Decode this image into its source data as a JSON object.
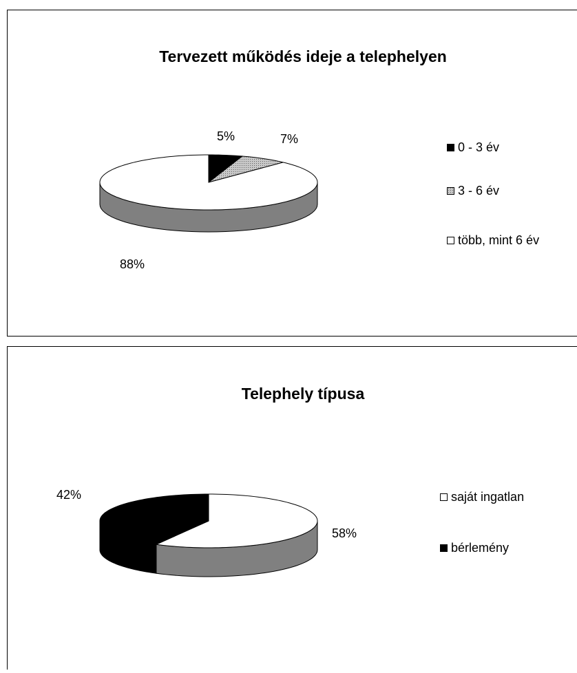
{
  "chart_data": [
    {
      "type": "pie3d",
      "title": "Tervezett működés ideje a telephelyen",
      "categories": [
        "0 - 3 év",
        "3 - 6 év",
        "több, mint 6 év"
      ],
      "values": [
        5,
        7,
        88
      ],
      "value_labels": [
        "5%",
        "7%",
        "88%"
      ],
      "colors": [
        "#000000",
        "#a6a6a6",
        "#ffffff"
      ],
      "legend": "right"
    },
    {
      "type": "pie3d",
      "title": "Telephely típusa",
      "categories": [
        "saját ingatlan",
        "bérlemény"
      ],
      "values": [
        58,
        42
      ],
      "value_labels": [
        "58%",
        "42%"
      ],
      "colors": [
        "#ffffff",
        "#000000"
      ],
      "legend": "right"
    }
  ]
}
